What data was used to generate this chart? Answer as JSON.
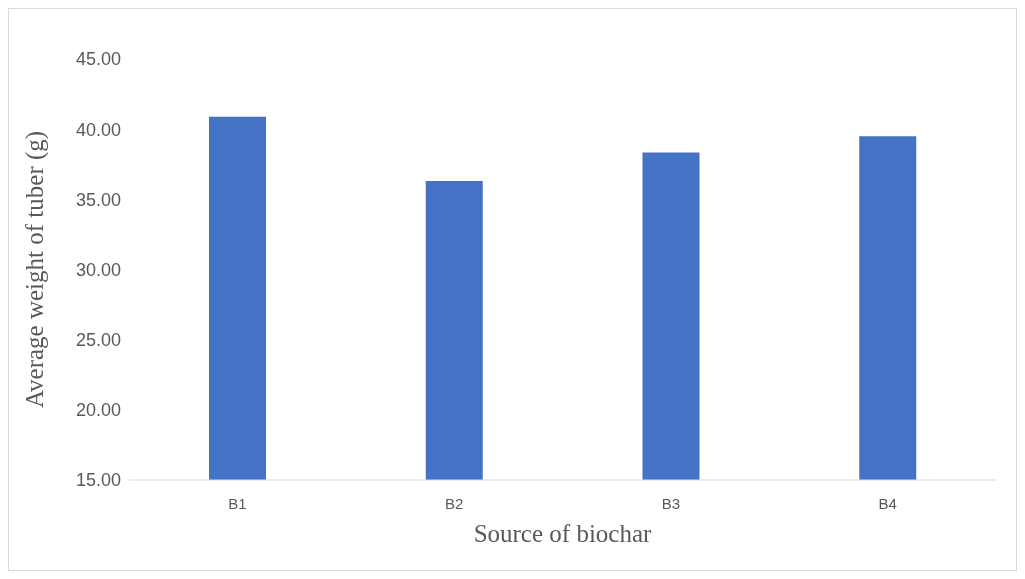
{
  "chart_data": {
    "type": "bar",
    "xlabel": "Source of biochar",
    "ylabel": "Average weight of tuber (g)",
    "categories": [
      "B1",
      "B2",
      "B3",
      "B4"
    ],
    "series": [
      {
        "color": "#4472c4",
        "values": [
          40.88,
          36.3,
          38.33,
          39.5
        ]
      }
    ],
    "ylim": [
      15,
      45
    ],
    "yticks": [
      {
        "value": 15,
        "label": "15.00"
      },
      {
        "value": 20,
        "label": "20.00"
      },
      {
        "value": 25,
        "label": "25.00"
      },
      {
        "value": 30,
        "label": "30.00"
      },
      {
        "value": 35,
        "label": "35.00"
      },
      {
        "value": 40,
        "label": "40.00"
      },
      {
        "value": 45,
        "label": "45.00"
      }
    ],
    "grid": false,
    "legend": false
  }
}
